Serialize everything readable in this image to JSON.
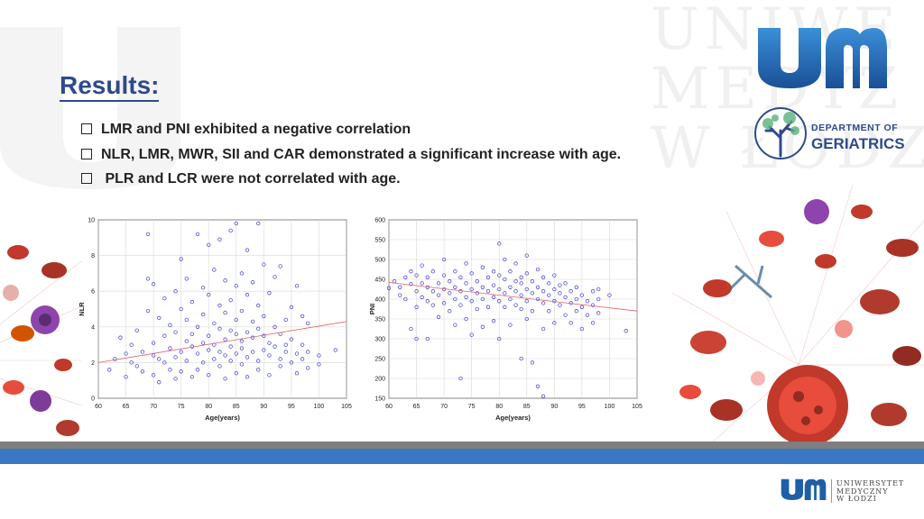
{
  "slide": {
    "title": "Results:",
    "bullets": [
      "LMR and PNI exhibited a negative correlation",
      "NLR, LMR, MWR, SII and CAR demonstrated a significant increase with age.",
      " PLR and LCR were not correlated with age."
    ],
    "watermark": [
      "UNIWE",
      "MEDYZ",
      "W ŁODZ"
    ],
    "brand": {
      "logo_label": "um",
      "dept_line1": "DEPARTMENT OF",
      "dept_line2": "GERIATRICS",
      "university_lines": [
        "UNIWERSYTET",
        "MEDYCZNY",
        "W ŁODZI"
      ],
      "logo_color": "#1f5fa8",
      "accent_blue": "#3a78c3"
    }
  },
  "chart_data": [
    {
      "type": "scatter",
      "title": "",
      "xlabel": "Age(years)",
      "ylabel": "NLR",
      "xlim": [
        60,
        105
      ],
      "ylim": [
        0,
        10
      ],
      "xticks": [
        60,
        65,
        70,
        75,
        80,
        85,
        90,
        95,
        100,
        105
      ],
      "yticks": [
        0,
        2,
        4,
        6,
        8,
        10
      ],
      "grid": true,
      "point_color": "#3b3bd6",
      "trend_color": "#e06060",
      "trend": {
        "x": [
          60,
          105
        ],
        "y": [
          2.0,
          4.3
        ]
      },
      "points": [
        [
          62,
          1.6
        ],
        [
          63,
          2.2
        ],
        [
          64,
          3.4
        ],
        [
          65,
          2.5
        ],
        [
          65,
          1.2
        ],
        [
          66,
          3.0
        ],
        [
          66,
          2.0
        ],
        [
          67,
          1.8
        ],
        [
          67,
          3.8
        ],
        [
          68,
          2.6
        ],
        [
          68,
          1.5
        ],
        [
          69,
          4.9
        ],
        [
          69,
          6.7
        ],
        [
          69,
          9.2
        ],
        [
          70,
          2.4
        ],
        [
          70,
          3.1
        ],
        [
          70,
          1.3
        ],
        [
          70,
          6.4
        ],
        [
          71,
          2.2
        ],
        [
          71,
          4.5
        ],
        [
          71,
          0.9
        ],
        [
          72,
          3.5
        ],
        [
          72,
          2.0
        ],
        [
          72,
          5.6
        ],
        [
          73,
          2.8
        ],
        [
          73,
          1.6
        ],
        [
          73,
          4.1
        ],
        [
          74,
          2.3
        ],
        [
          74,
          3.7
        ],
        [
          74,
          6.0
        ],
        [
          74,
          1.1
        ],
        [
          75,
          2.6
        ],
        [
          75,
          5.0
        ],
        [
          75,
          1.5
        ],
        [
          75,
          7.8
        ],
        [
          76,
          3.2
        ],
        [
          76,
          2.1
        ],
        [
          76,
          4.4
        ],
        [
          76,
          6.7
        ],
        [
          77,
          2.9
        ],
        [
          77,
          1.2
        ],
        [
          77,
          3.6
        ],
        [
          77,
          5.4
        ],
        [
          78,
          2.5
        ],
        [
          78,
          4.0
        ],
        [
          78,
          9.2
        ],
        [
          78,
          1.6
        ],
        [
          79,
          3.1
        ],
        [
          79,
          2.0
        ],
        [
          79,
          6.2
        ],
        [
          79,
          4.7
        ],
        [
          80,
          2.7
        ],
        [
          80,
          3.5
        ],
        [
          80,
          1.3
        ],
        [
          80,
          5.8
        ],
        [
          80,
          8.6
        ],
        [
          81,
          2.2
        ],
        [
          81,
          4.2
        ],
        [
          81,
          3.0
        ],
        [
          81,
          7.2
        ],
        [
          82,
          2.6
        ],
        [
          82,
          3.9
        ],
        [
          82,
          1.8
        ],
        [
          82,
          5.2
        ],
        [
          82,
          8.9
        ],
        [
          83,
          2.4
        ],
        [
          83,
          3.3
        ],
        [
          83,
          4.8
        ],
        [
          83,
          1.1
        ],
        [
          83,
          6.6
        ],
        [
          84,
          2.9
        ],
        [
          84,
          3.8
        ],
        [
          84,
          2.1
        ],
        [
          84,
          5.5
        ],
        [
          84,
          9.4
        ],
        [
          85,
          2.5
        ],
        [
          85,
          3.6
        ],
        [
          85,
          4.4
        ],
        [
          85,
          1.4
        ],
        [
          85,
          6.3
        ],
        [
          85,
          9.8
        ],
        [
          86,
          2.8
        ],
        [
          86,
          3.2
        ],
        [
          86,
          4.9
        ],
        [
          86,
          1.9
        ],
        [
          86,
          7.0
        ],
        [
          87,
          2.3
        ],
        [
          87,
          3.7
        ],
        [
          87,
          5.8
        ],
        [
          87,
          1.2
        ],
        [
          87,
          8.3
        ],
        [
          88,
          2.6
        ],
        [
          88,
          3.4
        ],
        [
          88,
          4.3
        ],
        [
          88,
          6.5
        ],
        [
          89,
          2.1
        ],
        [
          89,
          3.9
        ],
        [
          89,
          5.2
        ],
        [
          89,
          1.6
        ],
        [
          89,
          9.8
        ],
        [
          90,
          2.7
        ],
        [
          90,
          3.5
        ],
        [
          90,
          4.6
        ],
        [
          90,
          7.5
        ],
        [
          91,
          2.4
        ],
        [
          91,
          3.1
        ],
        [
          91,
          5.9
        ],
        [
          91,
          1.3
        ],
        [
          92,
          2.9
        ],
        [
          92,
          4.0
        ],
        [
          92,
          6.8
        ],
        [
          93,
          2.2
        ],
        [
          93,
          3.6
        ],
        [
          93,
          1.8
        ],
        [
          93,
          7.4
        ],
        [
          94,
          2.6
        ],
        [
          94,
          4.4
        ],
        [
          94,
          3.0
        ],
        [
          95,
          2.0
        ],
        [
          95,
          3.3
        ],
        [
          95,
          5.1
        ],
        [
          96,
          2.5
        ],
        [
          96,
          1.4
        ],
        [
          96,
          6.3
        ],
        [
          97,
          3.0
        ],
        [
          97,
          2.2
        ],
        [
          97,
          4.6
        ],
        [
          98,
          2.6
        ],
        [
          98,
          1.7
        ],
        [
          98,
          4.2
        ],
        [
          100,
          2.4
        ],
        [
          100,
          1.9
        ],
        [
          103,
          2.7
        ]
      ]
    },
    {
      "type": "scatter",
      "title": "",
      "xlabel": "Age(years)",
      "ylabel": "PNI",
      "xlim": [
        60,
        105
      ],
      "ylim": [
        150,
        600
      ],
      "xticks": [
        60,
        65,
        70,
        75,
        80,
        85,
        90,
        95,
        100,
        105
      ],
      "yticks": [
        150,
        200,
        250,
        300,
        350,
        400,
        450,
        500,
        550,
        600
      ],
      "grid": true,
      "point_color": "#3b3bd6",
      "trend_color": "#e06060",
      "trend": {
        "x": [
          60,
          105
        ],
        "y": [
          442,
          370
        ]
      },
      "points": [
        [
          60,
          428
        ],
        [
          61,
          445
        ],
        [
          62,
          430
        ],
        [
          62,
          410
        ],
        [
          63,
          455
        ],
        [
          63,
          400
        ],
        [
          64,
          470
        ],
        [
          64,
          438
        ],
        [
          64,
          325
        ],
        [
          65,
          420
        ],
        [
          65,
          460
        ],
        [
          65,
          380
        ],
        [
          65,
          300
        ],
        [
          66,
          440
        ],
        [
          66,
          405
        ],
        [
          66,
          485
        ],
        [
          67,
          430
        ],
        [
          67,
          395
        ],
        [
          67,
          455
        ],
        [
          67,
          300
        ],
        [
          68,
          420
        ],
        [
          68,
          470
        ],
        [
          68,
          385
        ],
        [
          69,
          440
        ],
        [
          69,
          410
        ],
        [
          69,
          355
        ],
        [
          70,
          425
        ],
        [
          70,
          460
        ],
        [
          70,
          390
        ],
        [
          70,
          500
        ],
        [
          71,
          415
        ],
        [
          71,
          445
        ],
        [
          71,
          370
        ],
        [
          72,
          430
        ],
        [
          72,
          400
        ],
        [
          72,
          470
        ],
        [
          72,
          335
        ],
        [
          73,
          420
        ],
        [
          73,
          455
        ],
        [
          73,
          385
        ],
        [
          73,
          200
        ],
        [
          74,
          440
        ],
        [
          74,
          405
        ],
        [
          74,
          490
        ],
        [
          74,
          350
        ],
        [
          75,
          425
        ],
        [
          75,
          395
        ],
        [
          75,
          465
        ],
        [
          75,
          310
        ],
        [
          76,
          415
        ],
        [
          76,
          445
        ],
        [
          76,
          375
        ],
        [
          77,
          430
        ],
        [
          77,
          400
        ],
        [
          77,
          480
        ],
        [
          77,
          330
        ],
        [
          78,
          420
        ],
        [
          78,
          455
        ],
        [
          78,
          380
        ],
        [
          79,
          435
        ],
        [
          79,
          405
        ],
        [
          79,
          470
        ],
        [
          79,
          345
        ],
        [
          80,
          425
        ],
        [
          80,
          395
        ],
        [
          80,
          460
        ],
        [
          80,
          540
        ],
        [
          80,
          300
        ],
        [
          81,
          415
        ],
        [
          81,
          450
        ],
        [
          81,
          380
        ],
        [
          81,
          500
        ],
        [
          82,
          430
        ],
        [
          82,
          400
        ],
        [
          82,
          470
        ],
        [
          82,
          335
        ],
        [
          83,
          420
        ],
        [
          83,
          445
        ],
        [
          83,
          385
        ],
        [
          83,
          490
        ],
        [
          84,
          410
        ],
        [
          84,
          440
        ],
        [
          84,
          375
        ],
        [
          84,
          455
        ],
        [
          84,
          250
        ],
        [
          85,
          425
        ],
        [
          85,
          395
        ],
        [
          85,
          465
        ],
        [
          85,
          350
        ],
        [
          85,
          510
        ],
        [
          86,
          415
        ],
        [
          86,
          445
        ],
        [
          86,
          370
        ],
        [
          86,
          240
        ],
        [
          87,
          430
        ],
        [
          87,
          400
        ],
        [
          87,
          475
        ],
        [
          87,
          180
        ],
        [
          88,
          420
        ],
        [
          88,
          390
        ],
        [
          88,
          455
        ],
        [
          88,
          325
        ],
        [
          88,
          155
        ],
        [
          89,
          410
        ],
        [
          89,
          440
        ],
        [
          89,
          370
        ],
        [
          90,
          425
        ],
        [
          90,
          395
        ],
        [
          90,
          460
        ],
        [
          90,
          340
        ],
        [
          91,
          415
        ],
        [
          91,
          385
        ],
        [
          91,
          435
        ],
        [
          92,
          405
        ],
        [
          92,
          440
        ],
        [
          92,
          360
        ],
        [
          93,
          420
        ],
        [
          93,
          390
        ],
        [
          93,
          340
        ],
        [
          94,
          400
        ],
        [
          94,
          430
        ],
        [
          94,
          370
        ],
        [
          95,
          410
        ],
        [
          95,
          380
        ],
        [
          95,
          325
        ],
        [
          96,
          395
        ],
        [
          96,
          360
        ],
        [
          97,
          385
        ],
        [
          97,
          420
        ],
        [
          97,
          340
        ],
        [
          98,
          400
        ],
        [
          98,
          365
        ],
        [
          98,
          425
        ],
        [
          100,
          410
        ],
        [
          103,
          320
        ]
      ]
    }
  ]
}
